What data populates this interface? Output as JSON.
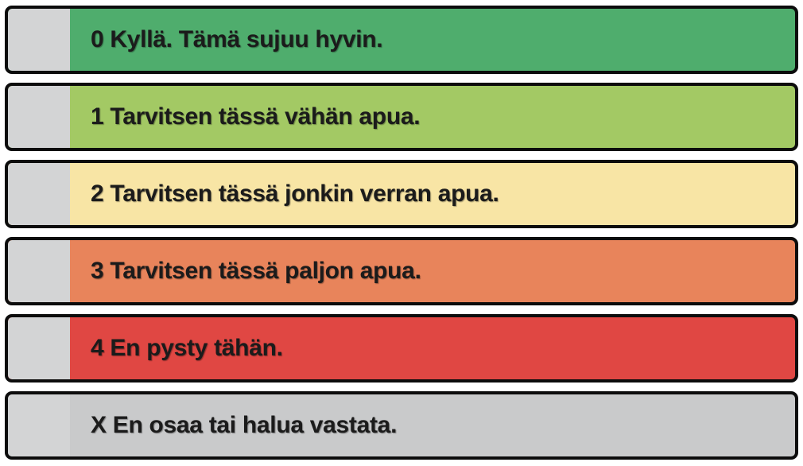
{
  "colors": {
    "page_background": "#ffffff",
    "row_border": "#0c0c0c",
    "select_box": "#d3d4d5",
    "label_text": "#1b1b1b"
  },
  "options": [
    {
      "value": "0",
      "label": "0 Kyllä. Tämä sujuu hyvin.",
      "color": "#4fad6d"
    },
    {
      "value": "1",
      "label": "1 Tarvitsen tässä vähän apua.",
      "color": "#a3c964"
    },
    {
      "value": "2",
      "label": "2 Tarvitsen tässä jonkin verran apua.",
      "color": "#f8e5a5"
    },
    {
      "value": "3",
      "label": "3 Tarvitsen tässä paljon apua.",
      "color": "#e8845b"
    },
    {
      "value": "4",
      "label": "4 En pysty tähän.",
      "color": "#e04743"
    },
    {
      "value": "X",
      "label": "X En osaa tai halua vastata.",
      "color": "#c9cacb"
    }
  ]
}
